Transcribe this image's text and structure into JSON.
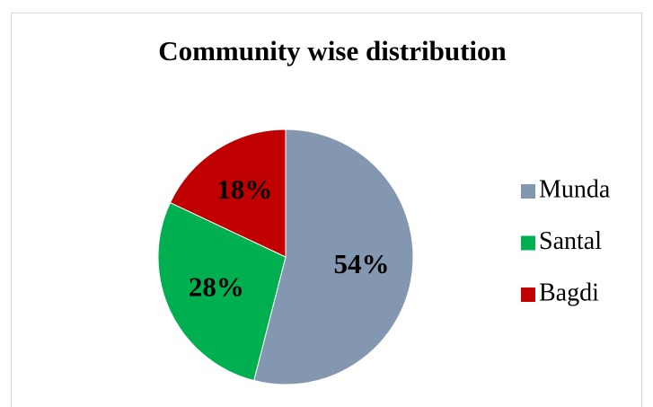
{
  "chart_data": {
    "type": "pie",
    "title": "Community wise distribution",
    "categories": [
      "Munda",
      "Santal",
      "Bagdi"
    ],
    "values": [
      54,
      28,
      18
    ],
    "value_labels": [
      "54%",
      "28%",
      "18%"
    ],
    "colors": [
      "#8497b0",
      "#00b050",
      "#c00000"
    ]
  }
}
